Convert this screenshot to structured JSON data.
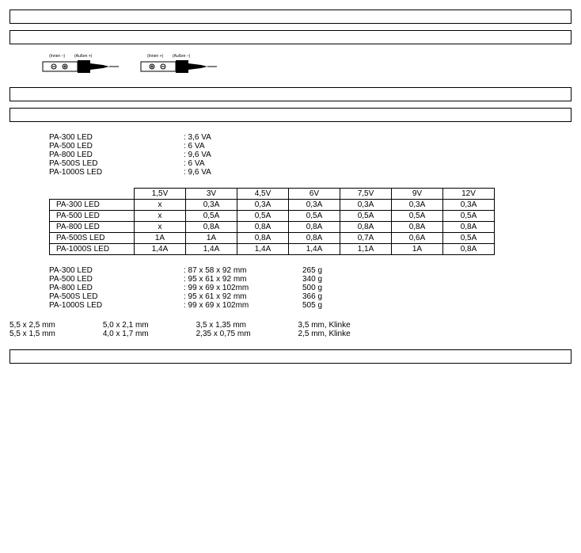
{
  "power_list": [
    {
      "model": "PA-300 LED",
      "value": ": 3,6 VA"
    },
    {
      "model": "PA-500 LED",
      "value": ": 6 VA"
    },
    {
      "model": "PA-800 LED",
      "value": ": 9,6 VA"
    },
    {
      "model": "PA-500S LED",
      "value": ": 6 VA"
    },
    {
      "model": "PA-1000S LED",
      "value": ": 9,6 VA"
    }
  ],
  "current_table": {
    "headers": [
      "1,5V",
      "3V",
      "4,5V",
      "6V",
      "7,5V",
      "9V",
      "12V"
    ],
    "rows": [
      {
        "label": "PA-300 LED",
        "cells": [
          "x",
          "0,3A",
          "0,3A",
          "0,3A",
          "0,3A",
          "0,3A",
          "0,3A"
        ]
      },
      {
        "label": "PA-500 LED",
        "cells": [
          "x",
          "0,5A",
          "0,5A",
          "0,5A",
          "0,5A",
          "0,5A",
          "0,5A"
        ]
      },
      {
        "label": "PA-800 LED",
        "cells": [
          "x",
          "0,8A",
          "0,8A",
          "0,8A",
          "0,8A",
          "0,8A",
          "0,8A"
        ]
      },
      {
        "label": "PA-500S LED",
        "cells": [
          "1A",
          "1A",
          "0,8A",
          "0,8A",
          "0,7A",
          "0,6A",
          "0,5A"
        ]
      },
      {
        "label": "PA-1000S LED",
        "cells": [
          "1,4A",
          "1,4A",
          "1,4A",
          "1,4A",
          "1,1A",
          "1A",
          "0,8A"
        ]
      }
    ]
  },
  "dims_list": [
    {
      "model": "PA-300 LED",
      "size": ": 87 x 58 x 92 mm",
      "weight": "265 g"
    },
    {
      "model": "PA-500 LED",
      "size": ": 95 x 61 x 92 mm",
      "weight": "340 g"
    },
    {
      "model": "PA-800 LED",
      "size": ": 99 x 69 x 102mm",
      "weight": "500 g"
    },
    {
      "model": "PA-500S LED",
      "size": ": 95 x 61 x 92 mm",
      "weight": "366 g"
    },
    {
      "model": "PA-1000S LED",
      "size": ": 99 x 69 x 102mm",
      "weight": "505 g"
    }
  ],
  "plugs": {
    "r0": {
      "c0": "5,5 x 2,5 mm",
      "c1": "5,0 x 2,1 mm",
      "c2": "3,5 x 1,35 mm",
      "c3": "3,5 mm, Klinke"
    },
    "r1": {
      "c0": "5,5 x 1,5 mm",
      "c1": "4,0 x 1,7 mm",
      "c2": "2,35 x 0,75 mm",
      "c3": "2,5 mm, Klinke"
    }
  },
  "polarity_labels": {
    "left": {
      "inner": "(Innen –)",
      "outer": "(Außen +)"
    },
    "right": {
      "inner": "(Innen +)",
      "outer": "(Außen –)"
    }
  }
}
